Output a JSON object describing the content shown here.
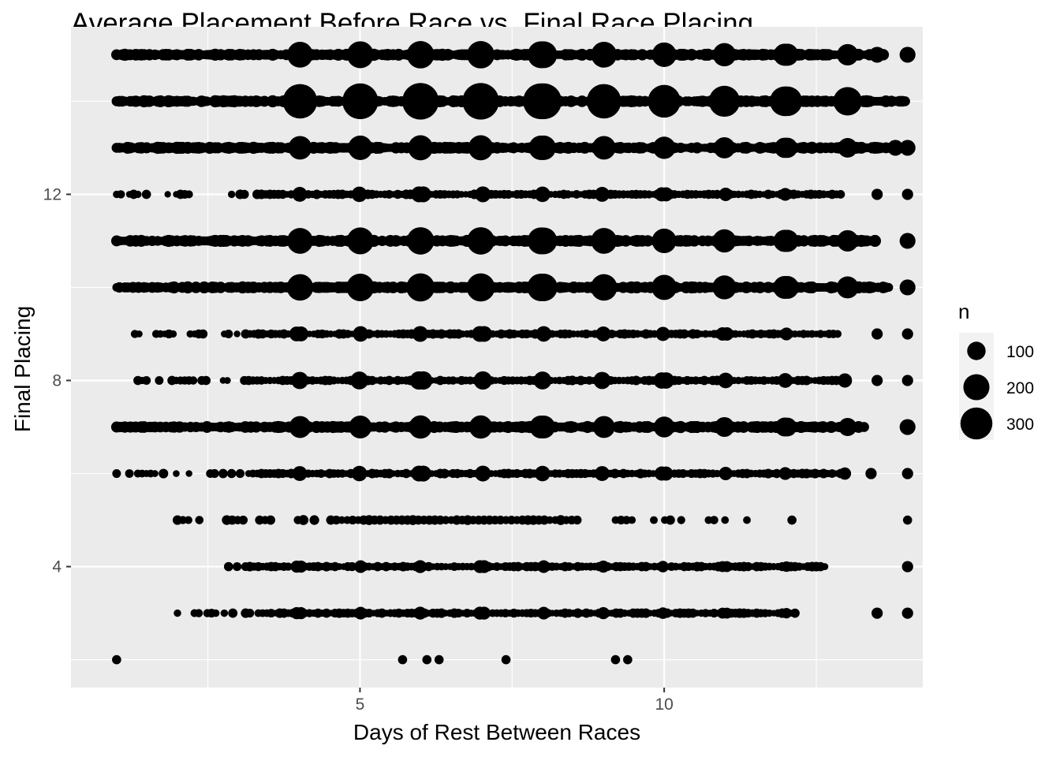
{
  "chart_data": {
    "type": "scatter",
    "title": "Average Placement Before Race vs. Final Race Placing",
    "xlabel": "Days of Rest Between Races",
    "ylabel": "Final Placing",
    "xlim": [
      0.25,
      14.25
    ],
    "ylim": [
      1.4,
      15.6
    ],
    "x_ticks": [
      5,
      10
    ],
    "y_ticks": [
      4,
      8,
      12
    ],
    "grid": true,
    "size_legend": {
      "title": "n",
      "entries": [
        {
          "label": "100",
          "n": 100
        },
        {
          "label": "200",
          "n": 200
        },
        {
          "label": "300",
          "n": 300
        }
      ],
      "placement": "right"
    },
    "rows": [
      {
        "y": 15,
        "x_min": 1.0,
        "x_max": 13.6,
        "x_extra": [
          13.5,
          14.0
        ],
        "density": "dense",
        "n_peak": 180
      },
      {
        "y": 14,
        "x_min": 1.0,
        "x_max": 14.0,
        "x_extra": [],
        "density": "dense",
        "n_peak": 320
      },
      {
        "y": 13,
        "x_min": 1.0,
        "x_max": 13.7,
        "x_extra": [
          13.8,
          14.0
        ],
        "density": "dense",
        "n_peak": 150
      },
      {
        "y": 12,
        "x_min": 1.0,
        "x_max": 12.9,
        "x_extra": [
          13.5,
          14.0
        ],
        "density": "medium",
        "n_peak": 60
      },
      {
        "y": 11,
        "x_min": 1.0,
        "x_max": 13.5,
        "x_extra": [
          14.0
        ],
        "density": "dense",
        "n_peak": 180
      },
      {
        "y": 10,
        "x_min": 1.0,
        "x_max": 13.7,
        "x_extra": [
          14.0
        ],
        "density": "dense",
        "n_peak": 190
      },
      {
        "y": 9,
        "x_min": 1.3,
        "x_max": 12.9,
        "x_extra": [
          13.5,
          14.0
        ],
        "density": "medium",
        "n_peak": 60
      },
      {
        "y": 8,
        "x_min": 1.0,
        "x_max": 13.0,
        "x_extra": [
          13.5,
          14.0
        ],
        "density": "medium",
        "n_peak": 80
      },
      {
        "y": 7,
        "x_min": 1.0,
        "x_max": 13.3,
        "x_extra": [
          14.0
        ],
        "density": "dense",
        "n_peak": 130
      },
      {
        "y": 6,
        "x_min": 1.0,
        "x_max": 13.0,
        "x_extra": [
          13.4,
          14.0
        ],
        "density": "medium",
        "n_peak": 60
      },
      {
        "y": 5,
        "x_min": 2.0,
        "x_max": 11.5,
        "x_extra": [
          12.1,
          14.0
        ],
        "density": "sparse",
        "n_peak": 40
      },
      {
        "y": 4,
        "x_min": 2.7,
        "x_max": 12.7,
        "x_extra": [
          14.0
        ],
        "density": "medium",
        "n_peak": 40
      },
      {
        "y": 3,
        "x_min": 2.0,
        "x_max": 12.2,
        "x_extra": [
          13.5,
          14.0
        ],
        "density": "medium",
        "n_peak": 40
      },
      {
        "y": 2,
        "x_min": 1.0,
        "x_max": 9.4,
        "x_extra": [],
        "density": "sparse",
        "n_peak": 25
      }
    ],
    "points": [
      {
        "x": 1.0,
        "y": 2,
        "n": 20
      },
      {
        "x": 5.7,
        "y": 2,
        "n": 20
      },
      {
        "x": 6.1,
        "y": 2,
        "n": 20
      },
      {
        "x": 6.3,
        "y": 2,
        "n": 20
      },
      {
        "x": 7.4,
        "y": 2,
        "n": 20
      },
      {
        "x": 9.2,
        "y": 2,
        "n": 20
      },
      {
        "x": 9.4,
        "y": 2,
        "n": 20
      }
    ],
    "colors": {
      "point": "#000000",
      "panel": "#ebebeb",
      "grid": "#ffffff",
      "tick": "#4d4d4d"
    }
  }
}
